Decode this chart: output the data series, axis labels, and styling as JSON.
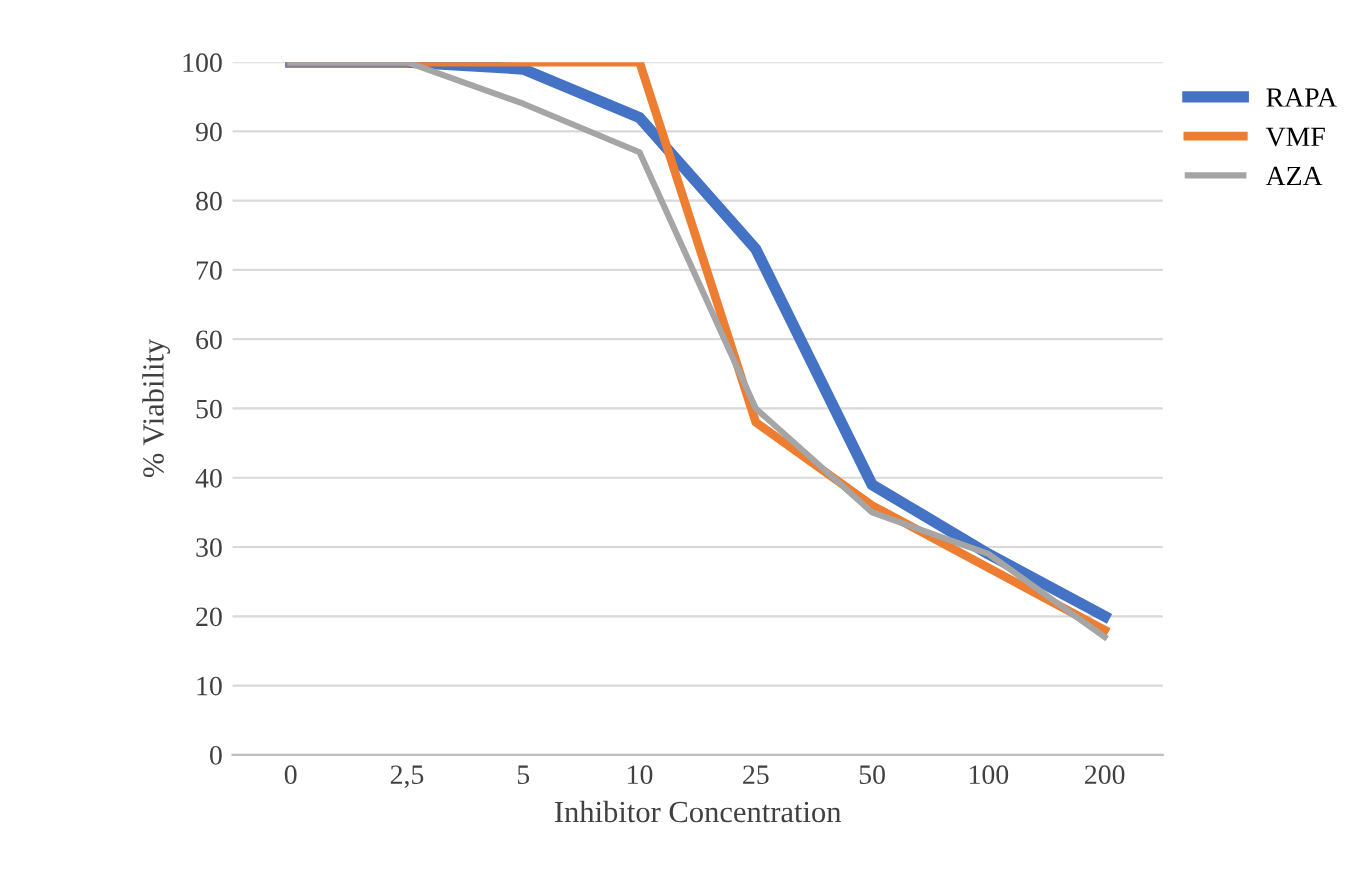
{
  "chart_data": {
    "type": "line",
    "xlabel": "Inhibitor Concentration",
    "ylabel": "% Viability",
    "categories": [
      "0",
      "2,5",
      "5",
      "10",
      "25",
      "50",
      "100",
      "200"
    ],
    "series": [
      {
        "name": "RAPA",
        "color": "#4472c4",
        "values": [
          100,
          100,
          99,
          92,
          73,
          39,
          29,
          20
        ]
      },
      {
        "name": "VMF",
        "color": "#ed7d31",
        "values": [
          100,
          100,
          100,
          100,
          48,
          36,
          27,
          18
        ]
      },
      {
        "name": "AZA",
        "color": "#a5a5a5",
        "values": [
          100,
          100,
          94,
          87,
          50,
          35,
          29,
          17
        ]
      }
    ],
    "ylim": [
      0,
      100
    ],
    "yticks": [
      0,
      10,
      20,
      30,
      40,
      50,
      60,
      70,
      80,
      90,
      100
    ],
    "grid": "y",
    "legend": "top right",
    "line_style": "solid",
    "marker": "none"
  }
}
